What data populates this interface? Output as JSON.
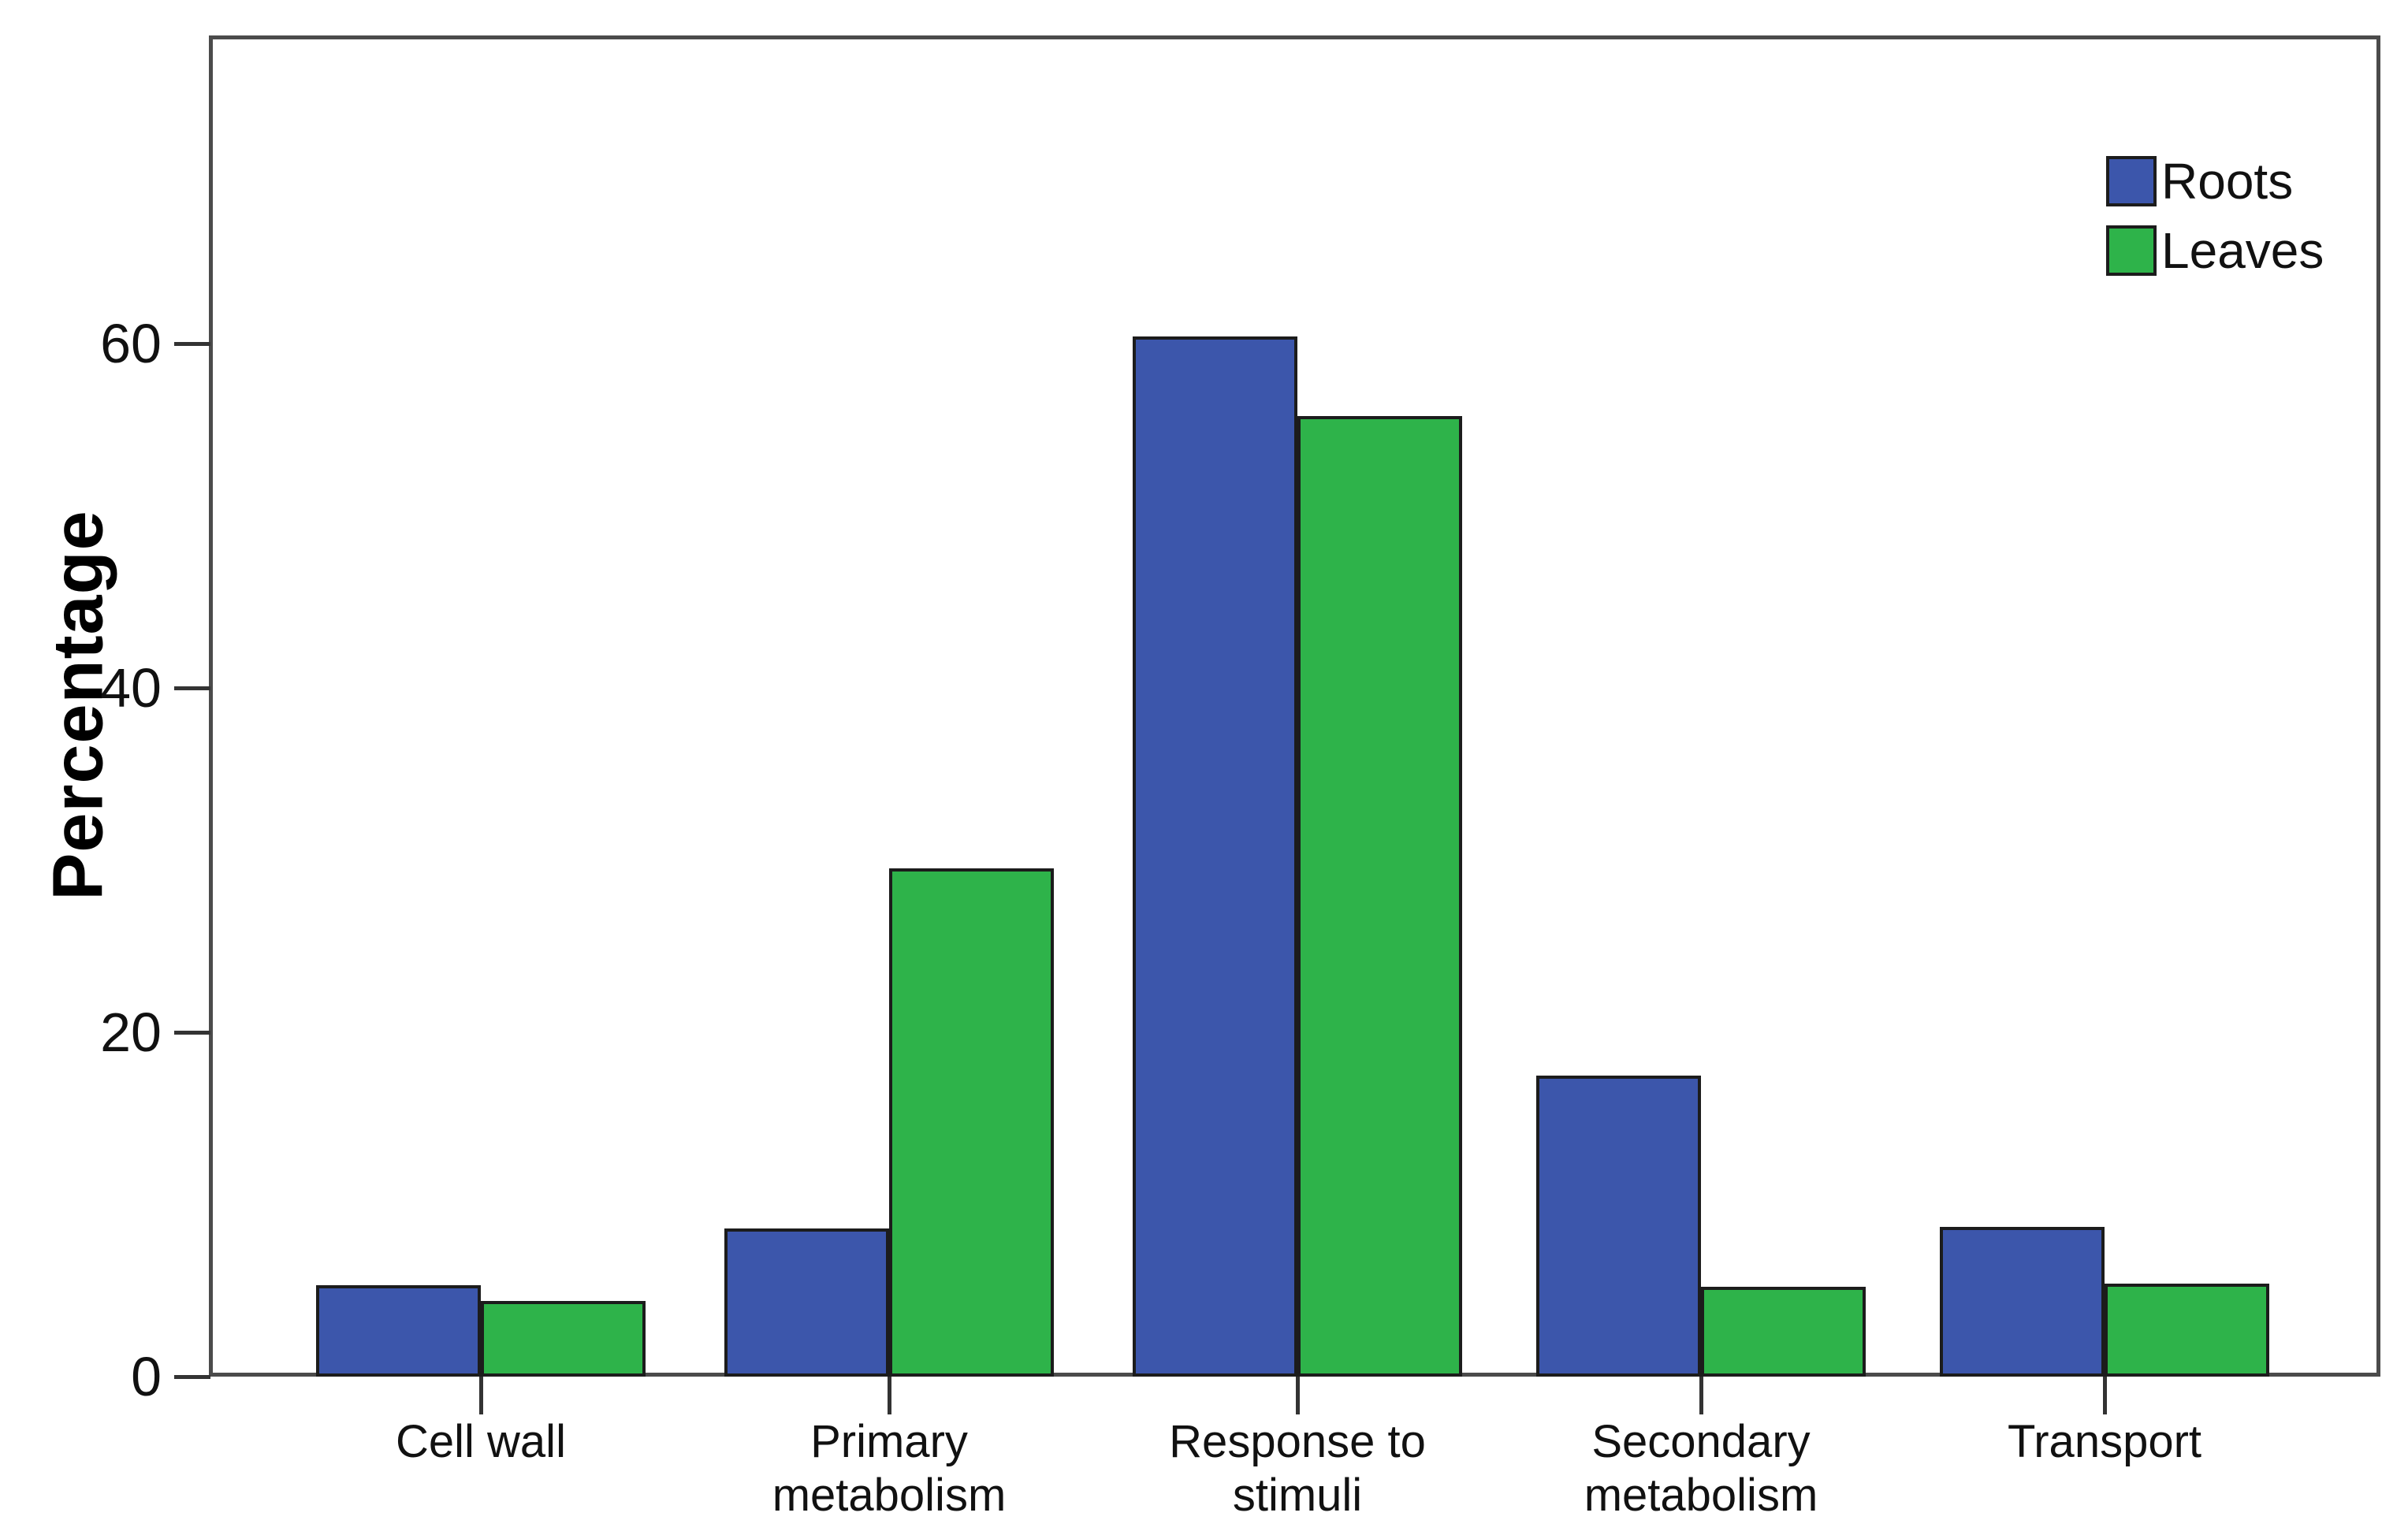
{
  "chart_data": {
    "type": "bar",
    "title": "",
    "ylabel": "Percentage",
    "xlabel": "",
    "categories": [
      "Cell wall",
      "Primary\nmetabolism",
      "Response to\nstimuli",
      "Secondary\nmetabolism",
      "Transport"
    ],
    "series": [
      {
        "name": "Roots",
        "color": "#3C56AB",
        "values": [
          5.3,
          8.6,
          60.4,
          17.5,
          8.7
        ]
      },
      {
        "name": "Leaves",
        "color": "#2EB34A",
        "values": [
          4.4,
          29.5,
          55.8,
          5.2,
          5.4
        ]
      }
    ],
    "y_ticks": [
      0,
      20,
      40,
      60
    ],
    "ylim": [
      0,
      78
    ],
    "grid": false,
    "legend_position": "top-right",
    "frame_color": "#4b4b4b",
    "bar_border_color": "#1c1c1c"
  }
}
